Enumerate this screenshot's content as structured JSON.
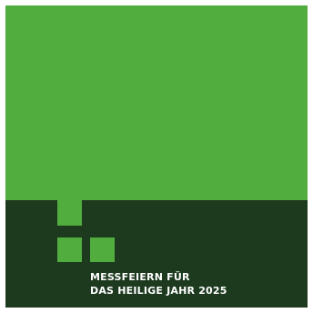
{
  "cover": {
    "title_line_1": "MESSFEIERN FÜR",
    "title_line_2": "DAS HEILIGE JAHR 2025"
  },
  "colors": {
    "light_green": "#52ad3f",
    "dark_green": "#1d3a1f",
    "text": "#ffffff"
  },
  "icons": [
    "square-block-icon",
    "square-block-icon",
    "square-block-icon"
  ]
}
